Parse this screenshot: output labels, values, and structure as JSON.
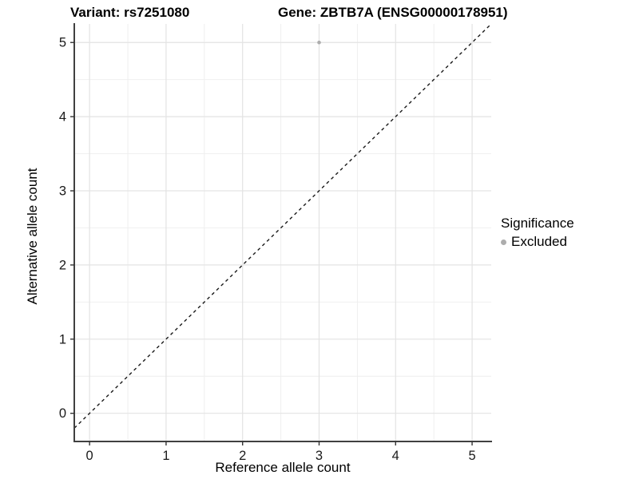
{
  "chart_data": {
    "type": "scatter",
    "title_left": "Variant: rs7251080",
    "title_right": "Gene: ZBTB7A (ENSG00000178951)",
    "xlabel": "Reference allele count",
    "ylabel": "Alternative allele count",
    "x_ticks": [
      0,
      1,
      2,
      3,
      4,
      5
    ],
    "y_ticks": [
      0,
      1,
      2,
      3,
      4,
      5
    ],
    "xlim": [
      -0.2,
      5.25
    ],
    "ylim": [
      -0.38,
      5.25
    ],
    "minor_step": 0.5,
    "grid": {
      "major": true,
      "minor": true
    },
    "points": [
      {
        "x": 3,
        "y": 5,
        "series": "Excluded"
      }
    ],
    "reference_line": {
      "equation": "y = x",
      "style": "dashed",
      "color": "#1a1a1a"
    },
    "legend": {
      "title": "Significance",
      "position": "right",
      "items": [
        {
          "label": "Excluded",
          "color": "#adadad"
        }
      ]
    },
    "colors": {
      "background": "#ffffff",
      "point": "#adadad",
      "grid_major": "#e3e3e3",
      "grid_minor": "#eeeeee",
      "axis_line": "#404040",
      "tick_mark": "#333333",
      "tick_text": "#1a1a1a"
    }
  }
}
